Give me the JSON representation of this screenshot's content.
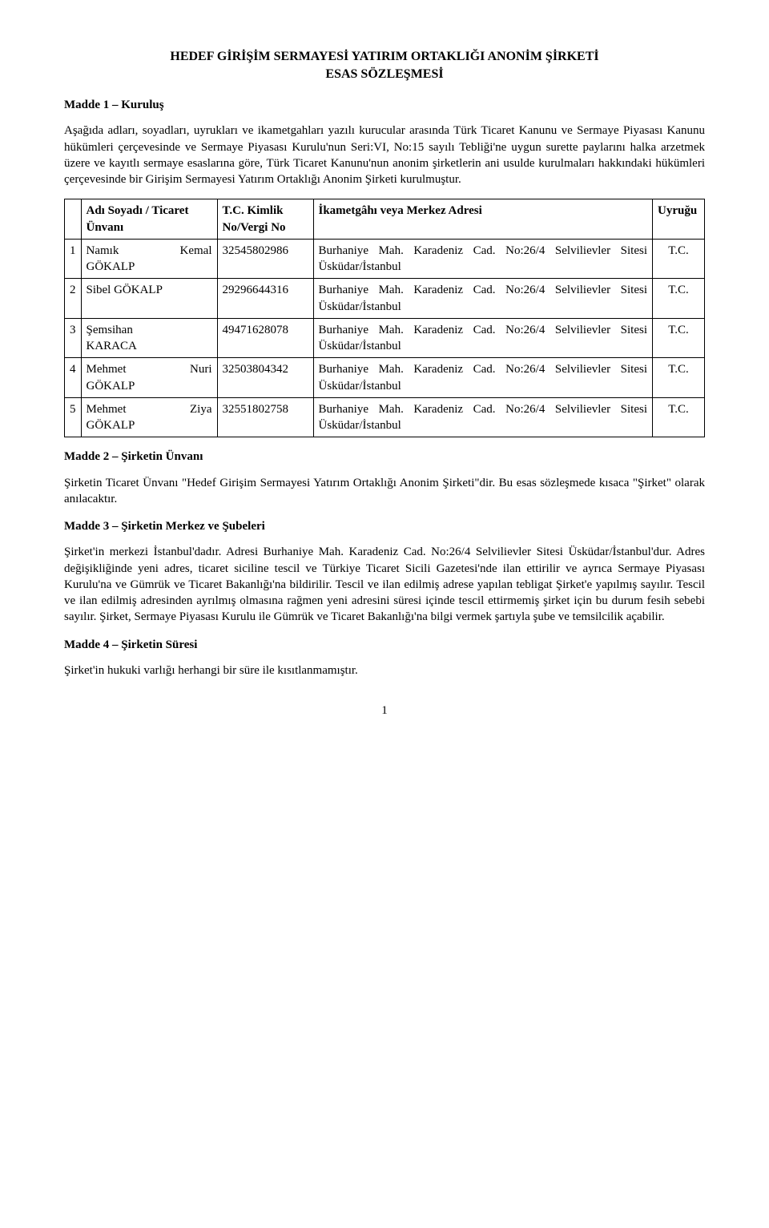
{
  "title": {
    "line1": "HEDEF GİRİŞİM SERMAYESİ YATIRIM ORTAKLIĞI ANONİM ŞİRKETİ",
    "line2": "ESAS SÖZLEŞMESİ"
  },
  "madde1": {
    "heading": "Madde 1 – Kuruluş",
    "para": "Aşağıda adları, soyadları, uyrukları ve ikametgahları yazılı kurucular arasında Türk Ticaret Kanunu ve Sermaye Piyasası Kanunu hükümleri çerçevesinde ve Sermaye Piyasası Kurulu'nun Seri:VI, No:15 sayılı Tebliği'ne uygun surette paylarını halka arzetmek üzere ve kayıtlı sermaye esaslarına göre, Türk Ticaret Kanunu'nun anonim şirketlerin ani usulde kurulmaları hakkındaki hükümleri çerçevesinde bir Girişim Sermayesi Yatırım Ortaklığı Anonim Şirketi kurulmuştur."
  },
  "table": {
    "headers": {
      "name": "Adı Soyadı / Ticaret Ünvanı",
      "tc": "T.C. Kimlik No/Vergi No",
      "addr": "İkametgâhı veya Merkez Adresi",
      "nat": "Uyruğu"
    },
    "rows": [
      {
        "idx": "1",
        "first": "Namık",
        "mid": "Kemal",
        "last": "GÖKALP",
        "tc": "32545802986",
        "addr": "Burhaniye Mah. Karadeniz Cad. No:26/4 Selvilievler Sitesi Üsküdar/İstanbul",
        "nat": "T.C."
      },
      {
        "idx": "2",
        "first": "Sibel GÖKALP",
        "mid": "",
        "last": "",
        "tc": "29296644316",
        "addr": "Burhaniye Mah. Karadeniz Cad. No:26/4 Selvilievler Sitesi Üsküdar/İstanbul",
        "nat": "T.C."
      },
      {
        "idx": "3",
        "first": "Şemsihan",
        "mid": "",
        "last": "KARACA",
        "tc": "49471628078",
        "addr": "Burhaniye Mah. Karadeniz Cad. No:26/4 Selvilievler Sitesi Üsküdar/İstanbul",
        "nat": "T.C."
      },
      {
        "idx": "4",
        "first": "Mehmet",
        "mid": "Nuri",
        "last": "GÖKALP",
        "tc": "32503804342",
        "addr": "Burhaniye Mah. Karadeniz Cad. No:26/4 Selvilievler Sitesi Üsküdar/İstanbul",
        "nat": "T.C."
      },
      {
        "idx": "5",
        "first": "Mehmet",
        "mid": "Ziya",
        "last": "GÖKALP",
        "tc": "32551802758",
        "addr": "Burhaniye Mah. Karadeniz Cad. No:26/4 Selvilievler Sitesi Üsküdar/İstanbul",
        "nat": "T.C."
      }
    ]
  },
  "madde2": {
    "heading": "Madde 2 – Şirketin Ünvanı",
    "para": "Şirketin Ticaret Ünvanı \"Hedef Girişim Sermayesi Yatırım Ortaklığı Anonim Şirketi\"dir. Bu esas sözleşmede kısaca \"Şirket\" olarak anılacaktır."
  },
  "madde3": {
    "heading": "Madde 3 – Şirketin Merkez ve Şubeleri",
    "para": "Şirket'in merkezi İstanbul'dadır. Adresi Burhaniye Mah. Karadeniz Cad. No:26/4 Selvilievler Sitesi Üsküdar/İstanbul'dur. Adres değişikliğinde yeni adres, ticaret siciline tescil ve Türkiye Ticaret Sicili Gazetesi'nde ilan ettirilir ve ayrıca Sermaye Piyasası Kurulu'na ve Gümrük ve Ticaret Bakanlığı'na bildirilir. Tescil ve ilan edilmiş adrese yapılan tebligat Şirket'e yapılmış sayılır. Tescil ve ilan edilmiş adresinden ayrılmış olmasına rağmen yeni adresini süresi içinde tescil ettirmemiş şirket için bu durum fesih sebebi sayılır. Şirket, Sermaye Piyasası Kurulu ile Gümrük  ve Ticaret Bakanlığı'na bilgi vermek şartıyla şube ve temsilcilik açabilir."
  },
  "madde4": {
    "heading": "Madde 4 – Şirketin Süresi",
    "para": "Şirket'in hukuki varlığı herhangi bir süre ile kısıtlanmamıştır."
  },
  "pageNumber": "1"
}
